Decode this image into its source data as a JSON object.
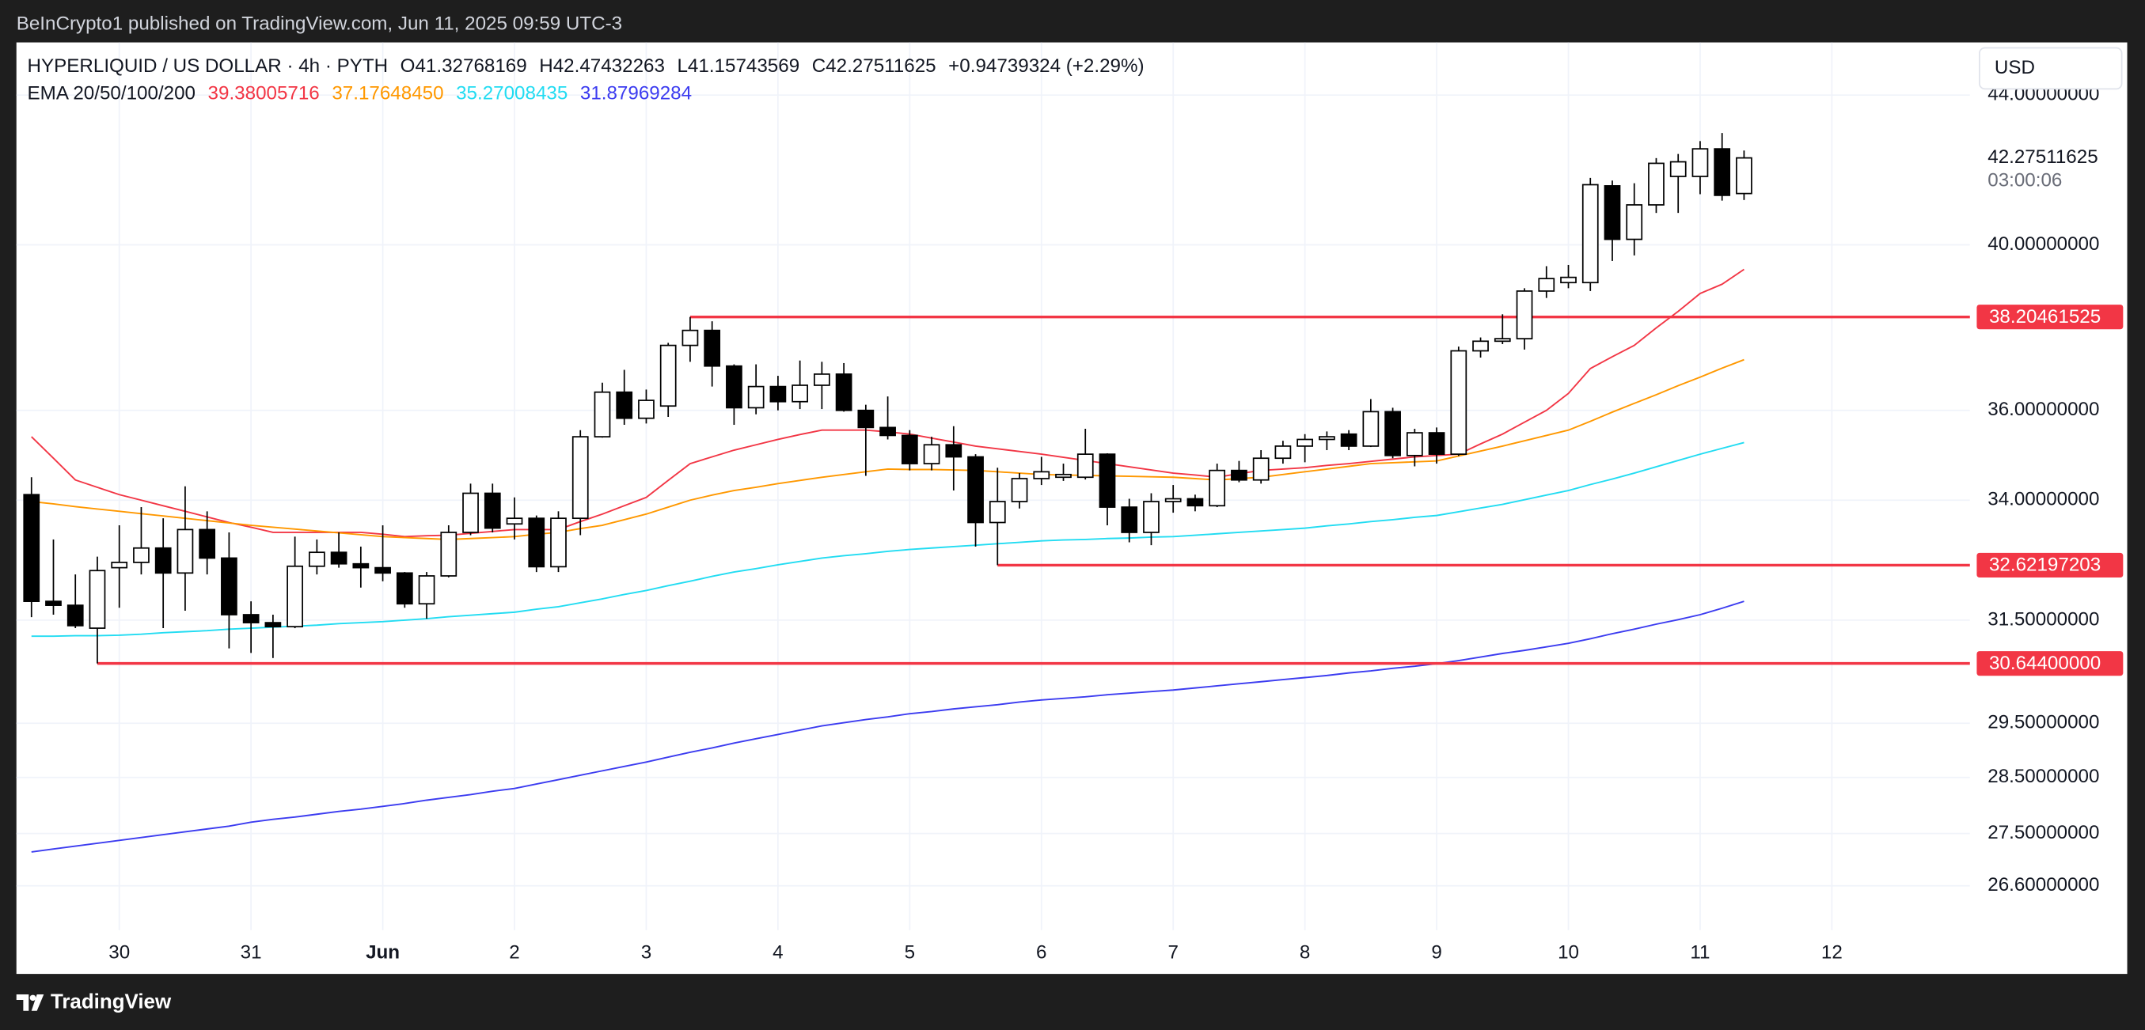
{
  "header": {
    "published": "BeInCrypto1 published on TradingView.com, Jun 11, 2025 09:59 UTC-3",
    "brand": "TradingView"
  },
  "chart_data": {
    "type": "candlestick",
    "title": "HYPERLIQUID / US DOLLAR · 4h · PYTH",
    "ohlc_readout": [
      "O41.32768169",
      "H42.47432263",
      "L41.15743569",
      "C42.27511625",
      "+0.94739324 (+2.29%)"
    ],
    "indicator_label": "EMA 20/50/100/200",
    "indicator_values": [
      "39.38005716",
      "37.17648450",
      "35.27008435",
      "31.87969284"
    ],
    "currency": "USD",
    "countdown": "03:00:06",
    "up_color": "#ffffff",
    "down_color": "#000000",
    "categories": [
      null,
      null,
      null,
      null,
      "30",
      null,
      null,
      null,
      null,
      null,
      "31",
      null,
      null,
      null,
      null,
      null,
      "Jun",
      null,
      null,
      null,
      null,
      null,
      "2",
      null,
      null,
      null,
      null,
      null,
      "3",
      null,
      null,
      null,
      null,
      null,
      "4",
      null,
      null,
      null,
      null,
      null,
      "5",
      null,
      null,
      null,
      null,
      null,
      "6",
      null,
      null,
      null,
      null,
      null,
      "7",
      null,
      null,
      null,
      null,
      null,
      "8",
      null,
      null,
      null,
      null,
      null,
      "9",
      null,
      null,
      null,
      null,
      null,
      "10",
      null,
      null,
      null,
      null,
      null,
      "11",
      null,
      null,
      null,
      null,
      null,
      "12"
    ],
    "open": [
      34.12,
      31.88,
      31.8,
      31.34,
      32.57,
      32.68,
      32.98,
      32.46,
      33.37,
      32.77,
      31.61,
      31.45,
      31.37,
      32.6,
      32.89,
      32.65,
      32.57,
      32.46,
      31.83,
      32.4,
      33.31,
      34.15,
      33.49,
      33.61,
      32.59,
      33.61,
      35.4,
      36.42,
      35.82,
      36.1,
      37.52,
      37.88,
      37.03,
      36.06,
      36.55,
      36.2,
      36.58,
      36.84,
      36.0,
      35.61,
      35.43,
      34.8,
      35.22,
      34.95,
      33.52,
      33.97,
      34.47,
      34.5,
      34.5,
      35.01,
      33.85,
      33.31,
      33.97,
      34.03,
      33.88,
      34.65,
      34.44,
      34.92,
      35.19,
      35.34,
      35.46,
      35.19,
      35.97,
      34.98,
      35.49,
      35.01,
      37.39,
      37.62,
      37.68,
      38.84,
      39.05,
      39.05,
      41.53,
      40.14,
      41.03,
      41.78,
      41.78,
      42.52,
      41.32768169,
      null,
      null,
      null,
      null
    ],
    "high": [
      34.5,
      33.16,
      32.43,
      32.8,
      33.46,
      33.85,
      33.61,
      34.3,
      33.76,
      33.31,
      31.88,
      31.61,
      33.22,
      33.16,
      33.31,
      33.01,
      33.46,
      32.48,
      32.48,
      33.46,
      34.36,
      34.36,
      34.06,
      33.67,
      33.76,
      35.55,
      36.64,
      36.94,
      36.48,
      37.58,
      38.20461525,
      38.1,
      37.07,
      37.07,
      36.8,
      37.16,
      37.13,
      37.1,
      36.13,
      36.32,
      35.55,
      35.4,
      35.64,
      35.01,
      34.71,
      34.59,
      34.95,
      34.8,
      35.58,
      35.03,
      34.03,
      34.15,
      34.33,
      34.12,
      34.8,
      34.86,
      35.1,
      35.31,
      35.46,
      35.52,
      35.55,
      36.26,
      36.06,
      35.58,
      35.61,
      37.49,
      37.71,
      38.27,
      38.91,
      39.46,
      39.49,
      41.74,
      41.67,
      41.6,
      42.27,
      42.38,
      42.73,
      42.95,
      42.47432263,
      null,
      null,
      null,
      null
    ],
    "low": [
      31.56,
      31.61,
      31.34,
      30.644,
      31.75,
      32.43,
      31.34,
      31.69,
      32.43,
      30.94,
      30.85,
      30.75,
      31.34,
      32.43,
      32.57,
      32.16,
      32.29,
      31.75,
      31.53,
      32.37,
      33.25,
      33.31,
      33.16,
      32.48,
      32.48,
      33.25,
      35.38,
      35.67,
      35.7,
      35.85,
      37.13,
      36.55,
      35.67,
      35.91,
      36.0,
      36.03,
      36.03,
      35.97,
      34.53,
      35.34,
      34.65,
      34.65,
      34.21,
      33.01,
      32.62197203,
      33.82,
      34.33,
      34.42,
      34.45,
      33.46,
      33.1,
      33.04,
      33.73,
      33.76,
      33.85,
      34.39,
      34.36,
      34.8,
      34.83,
      35.1,
      35.1,
      35.17,
      34.92,
      34.74,
      34.8,
      34.97,
      37.23,
      37.55,
      37.42,
      38.67,
      38.91,
      38.84,
      39.59,
      39.73,
      40.82,
      40.82,
      41.31,
      41.14,
      41.15743569,
      null,
      null,
      null,
      null
    ],
    "close": [
      31.88,
      31.8,
      31.39,
      32.51,
      32.68,
      32.98,
      32.46,
      33.37,
      32.77,
      31.61,
      31.45,
      31.37,
      32.6,
      32.89,
      32.65,
      32.57,
      32.46,
      31.83,
      32.4,
      33.31,
      34.15,
      33.4,
      33.61,
      32.59,
      33.61,
      35.4,
      36.42,
      35.82,
      36.23,
      37.52,
      37.88,
      37.03,
      36.06,
      36.55,
      36.2,
      36.58,
      36.84,
      36.0,
      35.61,
      35.43,
      34.8,
      35.22,
      34.95,
      33.52,
      33.97,
      34.47,
      34.62,
      34.56,
      35.01,
      33.85,
      33.31,
      33.97,
      34.03,
      33.88,
      34.65,
      34.44,
      34.92,
      35.19,
      35.34,
      35.4,
      35.19,
      35.97,
      34.98,
      35.49,
      35.01,
      37.39,
      37.62,
      37.68,
      38.84,
      39.15,
      39.18,
      41.56,
      40.14,
      41.03,
      42.13,
      42.17,
      42.52,
      41.28,
      42.27511625,
      null,
      null,
      null,
      null
    ],
    "series": [
      {
        "color": "#f23645",
        "values": [
          35.4,
          34.92,
          34.44,
          34.28,
          34.12,
          34.0,
          33.88,
          33.76,
          33.64,
          33.52,
          33.42,
          33.31,
          33.31,
          33.31,
          33.31,
          33.31,
          33.27,
          33.22,
          33.24,
          33.25,
          33.29,
          33.33,
          33.37,
          33.37,
          33.37,
          33.54,
          33.7,
          33.88,
          34.06,
          34.43,
          34.8,
          34.95,
          35.1,
          35.22,
          35.34,
          35.45,
          35.55,
          35.55,
          35.55,
          35.51,
          35.46,
          35.37,
          35.28,
          35.19,
          35.13,
          35.07,
          35.01,
          34.94,
          34.87,
          34.8,
          34.73,
          34.66,
          34.59,
          34.55,
          34.5,
          34.58,
          34.65,
          34.68,
          34.71,
          34.76,
          34.8,
          34.85,
          34.9,
          34.95,
          34.98,
          35.01,
          35.24,
          35.46,
          35.73,
          36.0,
          36.39,
          36.97,
          37.25,
          37.52,
          37.94,
          38.34,
          38.78,
          39.01,
          39.38,
          null,
          null,
          null,
          null
        ]
      },
      {
        "color": "#ff9800",
        "values": [
          33.97,
          33.92,
          33.86,
          33.81,
          33.76,
          33.71,
          33.66,
          33.61,
          33.56,
          33.51,
          33.46,
          33.42,
          33.38,
          33.34,
          33.3,
          33.26,
          33.22,
          33.2,
          33.18,
          33.16,
          33.18,
          33.2,
          33.22,
          33.27,
          33.31,
          33.39,
          33.46,
          33.58,
          33.7,
          33.85,
          34.0,
          34.11,
          34.21,
          34.28,
          34.36,
          34.43,
          34.5,
          34.56,
          34.62,
          34.68,
          34.67,
          34.67,
          34.66,
          34.65,
          34.62,
          34.59,
          34.56,
          34.55,
          34.54,
          34.53,
          34.52,
          34.51,
          34.5,
          34.47,
          34.44,
          34.47,
          34.5,
          34.56,
          34.62,
          34.68,
          34.74,
          34.8,
          34.82,
          34.84,
          34.86,
          34.97,
          35.08,
          35.19,
          35.31,
          35.43,
          35.55,
          35.75,
          35.96,
          36.16,
          36.36,
          36.57,
          36.77,
          36.98,
          37.18,
          null,
          null,
          null,
          null
        ]
      },
      {
        "color": "#22dcf2",
        "values": [
          31.18,
          31.18,
          31.19,
          31.19,
          31.2,
          31.22,
          31.25,
          31.27,
          31.29,
          31.32,
          31.34,
          31.36,
          31.38,
          31.4,
          31.43,
          31.45,
          31.47,
          31.5,
          31.53,
          31.57,
          31.6,
          31.63,
          31.66,
          31.72,
          31.77,
          31.85,
          31.93,
          32.02,
          32.1,
          32.2,
          32.29,
          32.39,
          32.48,
          32.55,
          32.63,
          32.7,
          32.77,
          32.82,
          32.86,
          32.91,
          32.95,
          32.98,
          33.01,
          33.04,
          33.07,
          33.1,
          33.13,
          33.15,
          33.16,
          33.18,
          33.19,
          33.21,
          33.22,
          33.25,
          33.28,
          33.31,
          33.34,
          33.37,
          33.4,
          33.45,
          33.49,
          33.54,
          33.58,
          33.63,
          33.67,
          33.75,
          33.83,
          33.91,
          34.01,
          34.11,
          34.21,
          34.34,
          34.46,
          34.59,
          34.73,
          34.87,
          35.01,
          35.14,
          35.27,
          null,
          null,
          null,
          null
        ]
      },
      {
        "color": "#3c3cf0",
        "values": [
          27.18,
          27.23,
          27.28,
          27.33,
          27.38,
          27.43,
          27.48,
          27.53,
          27.58,
          27.63,
          27.7,
          27.75,
          27.79,
          27.84,
          27.89,
          27.93,
          27.98,
          28.03,
          28.09,
          28.14,
          28.19,
          28.25,
          28.3,
          28.38,
          28.46,
          28.54,
          28.62,
          28.7,
          28.78,
          28.87,
          28.96,
          29.04,
          29.13,
          29.21,
          29.29,
          29.37,
          29.45,
          29.51,
          29.57,
          29.62,
          29.68,
          29.72,
          29.77,
          29.81,
          29.85,
          29.9,
          29.94,
          29.97,
          30.0,
          30.04,
          30.07,
          30.1,
          30.13,
          30.17,
          30.21,
          30.25,
          30.29,
          30.33,
          30.37,
          30.41,
          30.46,
          30.5,
          30.55,
          30.59,
          30.64,
          30.7,
          30.77,
          30.84,
          30.9,
          30.97,
          31.04,
          31.13,
          31.23,
          31.32,
          31.42,
          31.51,
          31.61,
          31.74,
          31.88,
          null,
          null,
          null,
          null
        ]
      }
    ],
    "ylim": [
      25.86,
      45.5
    ],
    "log_scale": true,
    "grid": true,
    "yticks": [
      {
        "value": 44,
        "label": "44.00000000"
      },
      {
        "value": 40,
        "label": "40.00000000"
      },
      {
        "value": 36,
        "label": "36.00000000"
      },
      {
        "value": 34,
        "label": "34.00000000"
      },
      {
        "value": 31.5,
        "label": "31.50000000"
      },
      {
        "value": 29.5,
        "label": "29.50000000"
      },
      {
        "value": 28.5,
        "label": "28.50000000"
      },
      {
        "value": 27.5,
        "label": "27.50000000"
      },
      {
        "value": 26.6,
        "label": "26.60000000"
      }
    ],
    "horizontal_lines": [
      38.20461525,
      32.62197203,
      {
        "value": 30.644,
        "label": "30.64400000"
      }
    ],
    "line_color": "#f23645"
  }
}
